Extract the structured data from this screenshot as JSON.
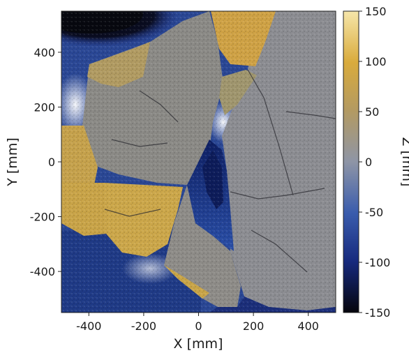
{
  "chart_data": {
    "type": "heatmap",
    "title": "",
    "xlabel": "X [mm]",
    "ylabel": "Y [mm]",
    "colorbar_label": "Z [mm]",
    "xlim": [
      -500,
      500
    ],
    "ylim": [
      -550,
      550
    ],
    "x_ticks": [
      -400,
      -200,
      0,
      200,
      400
    ],
    "y_ticks": [
      400,
      200,
      0,
      -200,
      -400
    ],
    "colorbar_range": [
      -150,
      150
    ],
    "colorbar_ticks": [
      150,
      100,
      50,
      0,
      -50,
      -100,
      -150
    ],
    "colormap": [
      "#0a0a14",
      "#1b2a78",
      "#3d5fb0",
      "#8c98b8",
      "#b3a27a",
      "#d8a93c",
      "#f3e2a0"
    ],
    "surface": "shaded relief of a rough stone-slab surface (height map)",
    "grid": false
  }
}
